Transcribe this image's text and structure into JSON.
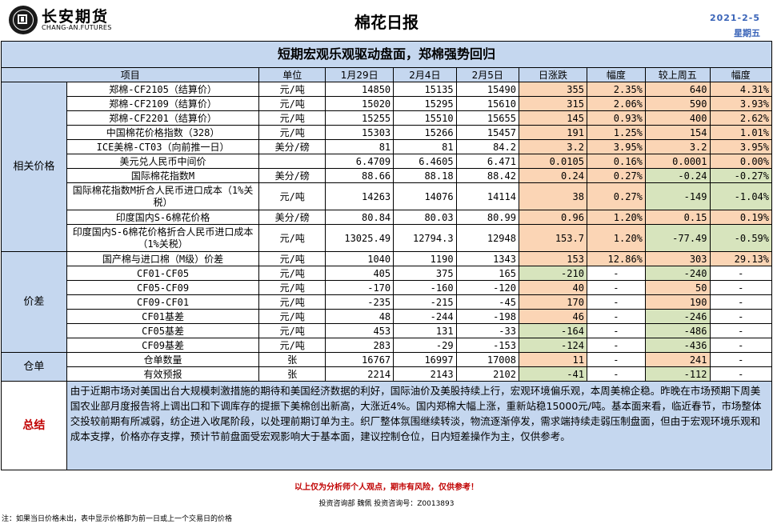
{
  "header": {
    "brand_cn": "长安期货",
    "brand_en": "CHANG-AN.FUTURES",
    "title": "棉花日报",
    "date": "2021-2-5",
    "weekday": "星期五"
  },
  "banner": "短期宏观乐观驱动盘面，郑棉强势回归",
  "columns": [
    "项目",
    "单位",
    "1月29日",
    "2月4日",
    "2月5日",
    "日涨跌",
    "幅度",
    "较上周五",
    "幅度"
  ],
  "groups": [
    {
      "category": "相关价格",
      "rows": [
        {
          "item": "郑棉-CF2105（结算价）",
          "unit": "元/吨",
          "v1": "14850",
          "v2": "15135",
          "v3": "15490",
          "chg": "355",
          "pct": "2.35%",
          "wk": "640",
          "wpct": "4.31%"
        },
        {
          "item": "郑棉-CF2109（结算价）",
          "unit": "元/吨",
          "v1": "15020",
          "v2": "15295",
          "v3": "15610",
          "chg": "315",
          "pct": "2.06%",
          "wk": "590",
          "wpct": "3.93%"
        },
        {
          "item": "郑棉-CF2201（结算价）",
          "unit": "元/吨",
          "v1": "15255",
          "v2": "15510",
          "v3": "15655",
          "chg": "145",
          "pct": "0.93%",
          "wk": "400",
          "wpct": "2.62%"
        },
        {
          "item": "中国棉花价格指数（328）",
          "unit": "元/吨",
          "v1": "15303",
          "v2": "15266",
          "v3": "15457",
          "chg": "191",
          "pct": "1.25%",
          "wk": "154",
          "wpct": "1.01%"
        },
        {
          "item": "ICE美棉-CT03（向前推一日）",
          "unit": "美分/磅",
          "v1": "81",
          "v2": "81",
          "v3": "84.2",
          "chg": "3.2",
          "pct": "3.95%",
          "wk": "3.2",
          "wpct": "3.95%"
        },
        {
          "item": "美元兑人民币中间价",
          "unit": "",
          "v1": "6.4709",
          "v2": "6.4605",
          "v3": "6.471",
          "chg": "0.0105",
          "pct": "0.16%",
          "wk": "0.0001",
          "wpct": "0.00%"
        },
        {
          "item": "国际棉花指数M",
          "unit": "美分/磅",
          "v1": "88.66",
          "v2": "88.18",
          "v3": "88.42",
          "chg": "0.24",
          "pct": "0.27%",
          "wk": "-0.24",
          "wpct": "-0.27%"
        },
        {
          "item": "国际棉花指数M折合人民币进口成本（1%关税）",
          "unit": "元/吨",
          "v1": "14263",
          "v2": "14076",
          "v3": "14114",
          "chg": "38",
          "pct": "0.27%",
          "wk": "-149",
          "wpct": "-1.04%",
          "tall": true
        },
        {
          "item": "印度国内S-6棉花价格",
          "unit": "美分/磅",
          "v1": "80.84",
          "v2": "80.03",
          "v3": "80.99",
          "chg": "0.96",
          "pct": "1.20%",
          "wk": "0.15",
          "wpct": "0.19%"
        },
        {
          "item": "印度国内S-6棉花价格折合人民币进口成本（1%关税）",
          "unit": "元/吨",
          "v1": "13025.49",
          "v2": "12794.3",
          "v3": "12948",
          "chg": "153.7",
          "pct": "1.20%",
          "wk": "-77.49",
          "wpct": "-0.59%",
          "tall": true
        }
      ]
    },
    {
      "category": "价差",
      "rows": [
        {
          "item": "国产棉与进口棉（M级）价差",
          "unit": "元/吨",
          "v1": "1040",
          "v2": "1190",
          "v3": "1343",
          "chg": "153",
          "pct": "12.86%",
          "wk": "303",
          "wpct": "29.13%"
        },
        {
          "item": "CF01-CF05",
          "unit": "元/吨",
          "v1": "405",
          "v2": "375",
          "v3": "165",
          "chg": "-210",
          "pct": "-",
          "wk": "-240",
          "wpct": "-"
        },
        {
          "item": "CF05-CF09",
          "unit": "元/吨",
          "v1": "-170",
          "v2": "-160",
          "v3": "-120",
          "chg": "40",
          "pct": "-",
          "wk": "50",
          "wpct": "-"
        },
        {
          "item": "CF09-CF01",
          "unit": "元/吨",
          "v1": "-235",
          "v2": "-215",
          "v3": "-45",
          "chg": "170",
          "pct": "-",
          "wk": "190",
          "wpct": "-"
        },
        {
          "item": "CF01基差",
          "unit": "元/吨",
          "v1": "48",
          "v2": "-244",
          "v3": "-198",
          "chg": "46",
          "pct": "-",
          "wk": "-246",
          "wpct": "-"
        },
        {
          "item": "CF05基差",
          "unit": "元/吨",
          "v1": "453",
          "v2": "131",
          "v3": "-33",
          "chg": "-164",
          "pct": "-",
          "wk": "-486",
          "wpct": "-"
        },
        {
          "item": "CF09基差",
          "unit": "元/吨",
          "v1": "283",
          "v2": "-29",
          "v3": "-153",
          "chg": "-124",
          "pct": "-",
          "wk": "-436",
          "wpct": "-"
        }
      ]
    },
    {
      "category": "仓单",
      "rows": [
        {
          "item": "仓单数量",
          "unit": "张",
          "v1": "16767",
          "v2": "16997",
          "v3": "17008",
          "chg": "11",
          "pct": "-",
          "wk": "241",
          "wpct": "-"
        },
        {
          "item": "有效预报",
          "unit": "张",
          "v1": "2214",
          "v2": "2143",
          "v3": "2102",
          "chg": "-41",
          "pct": "-",
          "wk": "-112",
          "wpct": "-"
        }
      ]
    }
  ],
  "summary": {
    "label": "总结",
    "text": "由于近期市场对美国出台大规模刺激措施的期待和美国经济数据的利好，国际油价及美股持续上行，宏观环境偏乐观，本周美棉企稳。昨晚在市场预期下周美国农业部月度报告将上调出口和下调库存的提振下美棉创出新高，大涨近4%。国内郑棉大幅上涨，重新站稳15000元/吨。基本面来看，临近春节，市场整体交投较前期有所减弱，纺企进入收尾阶段，以处理前期订单为主。织厂整体氛围继续转淡，物流逐渐停发，需求端持续走弱压制盘面，但由于宏观环境乐观和成本支撑，价格亦存支撑，预计节前盘面受宏观影响大于基本面，建议控制仓位，日内短差操作为主，仅供参考。"
  },
  "footer": {
    "disclaimer": "以上仅为分析师个人观点，期市有风险，仅供参考！",
    "advisor": "投资咨询部  魏佩    投资咨询号：Z0013893",
    "note": "注：如果当日价格未出，表中显示价格即为前一日或上一个交易日的价格"
  },
  "colors": {
    "header_blue": "#c5d7ef",
    "positive": "#fbd5b5",
    "negative": "#d7e4bd",
    "summary_label": "#c00000"
  }
}
